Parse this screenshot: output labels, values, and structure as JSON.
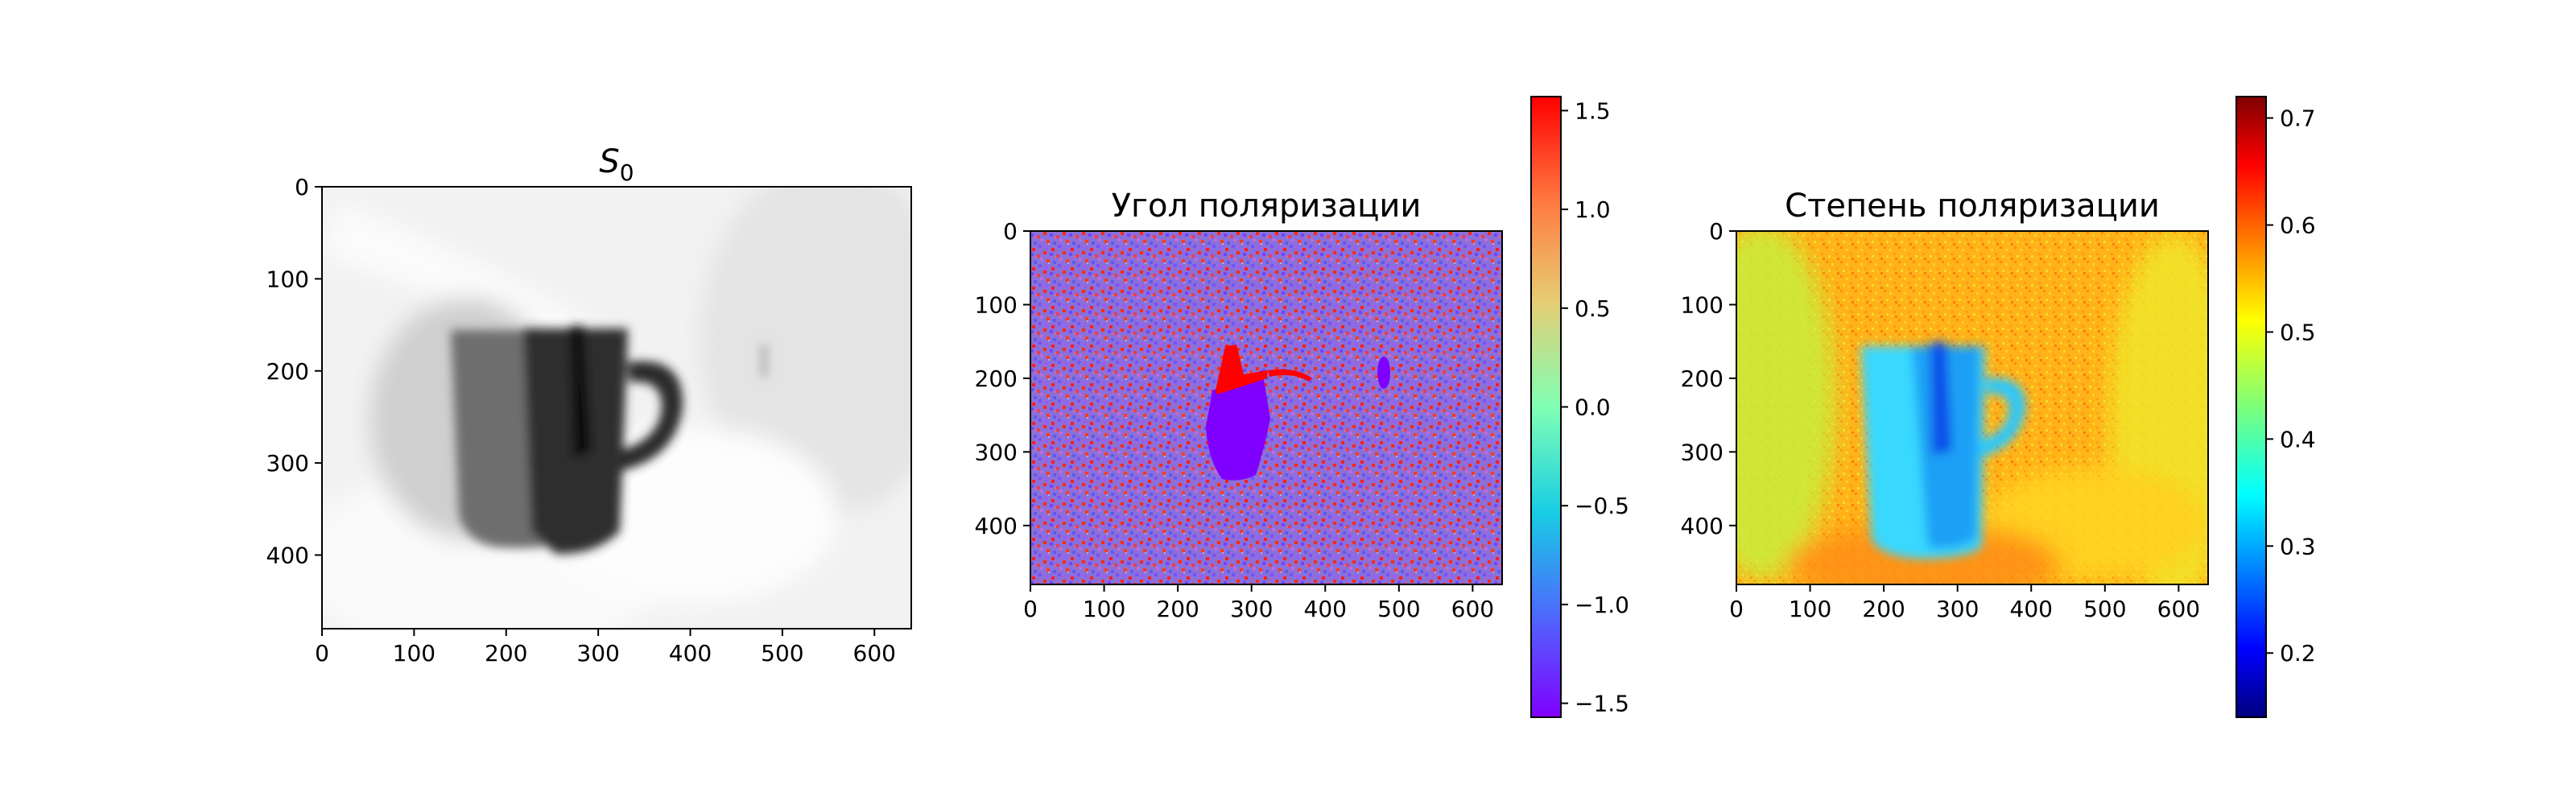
{
  "chart_data": [
    {
      "type": "heatmap",
      "title_base": "S",
      "title_sub": "0",
      "colormap": "gray",
      "xlim": [
        0,
        640
      ],
      "ylim": [
        480,
        0
      ],
      "x_ticks": [
        0,
        100,
        200,
        300,
        400,
        500,
        600
      ],
      "y_ticks": [
        0,
        100,
        200,
        300,
        400
      ],
      "colorbar": null
    },
    {
      "type": "heatmap",
      "title": "Угол поляризации",
      "colormap": "rainbow",
      "xlim": [
        0,
        640
      ],
      "ylim": [
        480,
        0
      ],
      "x_ticks": [
        0,
        100,
        200,
        300,
        400,
        500,
        600
      ],
      "y_ticks": [
        0,
        100,
        200,
        300,
        400
      ],
      "colorbar": {
        "min": -1.5708,
        "max": 1.5708,
        "ticks": [
          -1.5,
          -1.0,
          -0.5,
          0.0,
          0.5,
          1.0,
          1.5
        ]
      }
    },
    {
      "type": "heatmap",
      "title": "Степень поляризации",
      "colormap": "jet",
      "xlim": [
        0,
        640
      ],
      "ylim": [
        480,
        0
      ],
      "x_ticks": [
        0,
        100,
        200,
        300,
        400,
        500,
        600
      ],
      "y_ticks": [
        0,
        100,
        200,
        300,
        400
      ],
      "colorbar": {
        "min": 0.14,
        "max": 0.72,
        "ticks": [
          0.2,
          0.3,
          0.4,
          0.5,
          0.6,
          0.7
        ]
      }
    }
  ]
}
